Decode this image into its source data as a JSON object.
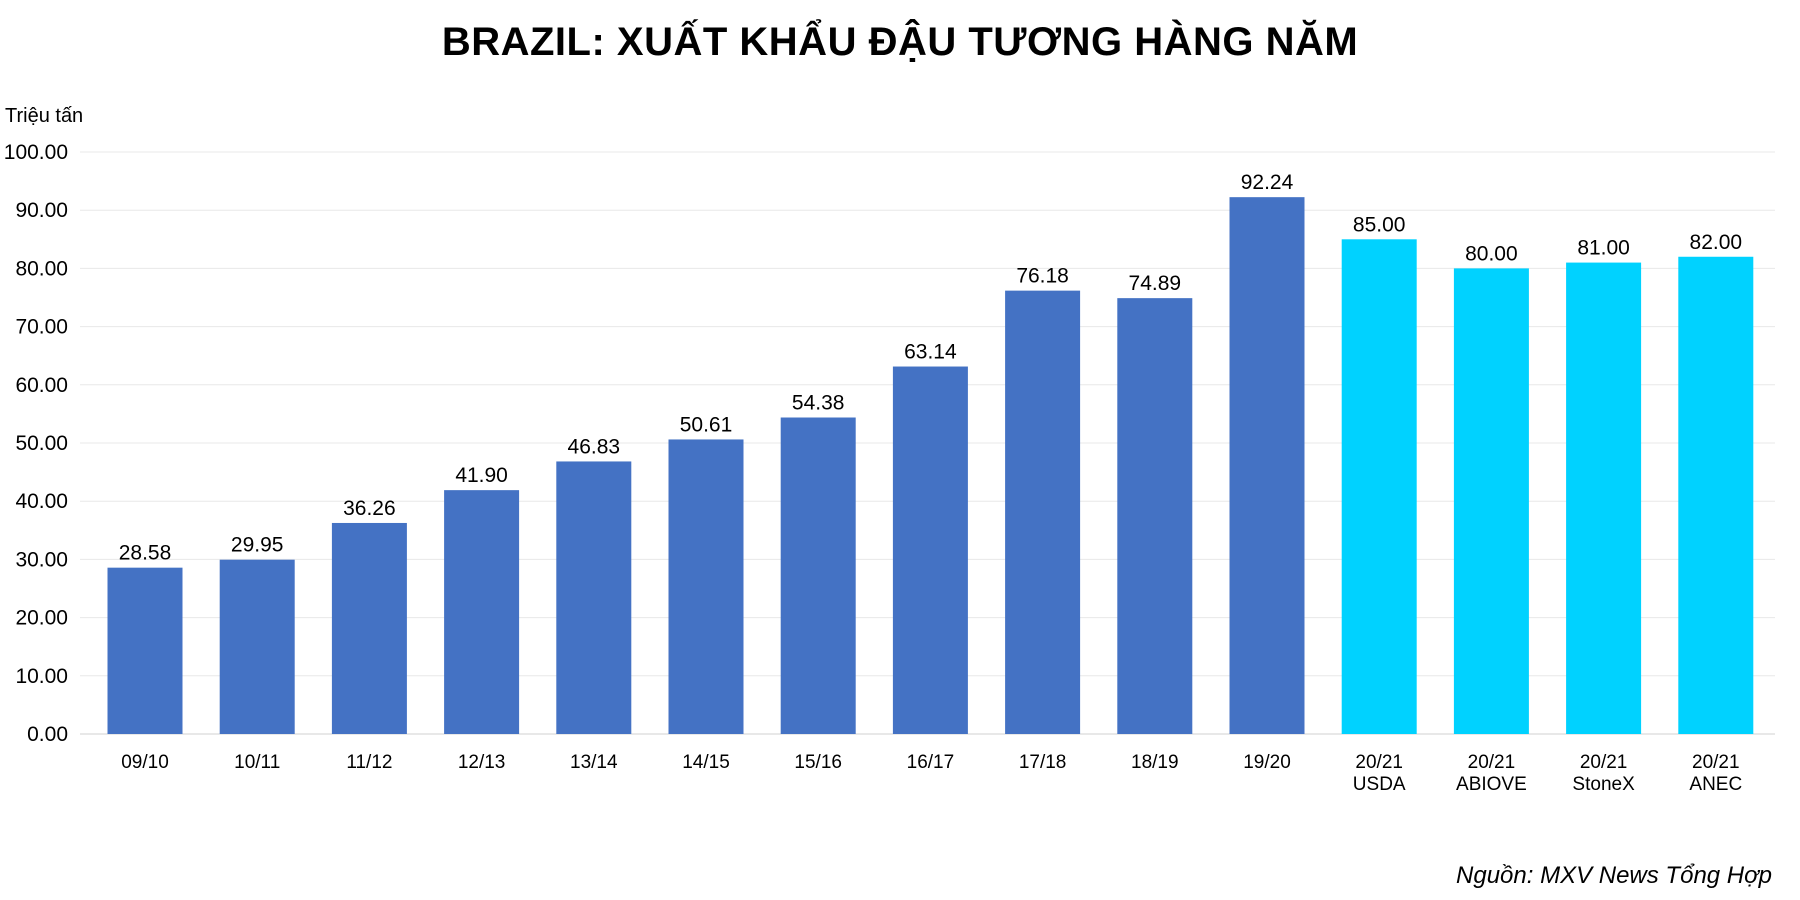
{
  "chart_data": {
    "type": "bar",
    "title": "BRAZIL: XUẤT KHẨU ĐẬU TƯƠNG HÀNG NĂM",
    "ylabel": "Triệu tấn",
    "xlabel": "",
    "ylim": [
      0,
      100
    ],
    "yticks": [
      "0.00",
      "10.00",
      "20.00",
      "30.00",
      "40.00",
      "50.00",
      "60.00",
      "70.00",
      "80.00",
      "90.00",
      "100.00"
    ],
    "grid": true,
    "categories": [
      [
        "09/10"
      ],
      [
        "10/11"
      ],
      [
        "11/12"
      ],
      [
        "12/13"
      ],
      [
        "13/14"
      ],
      [
        "14/15"
      ],
      [
        "15/16"
      ],
      [
        "16/17"
      ],
      [
        "17/18"
      ],
      [
        "18/19"
      ],
      [
        "19/20"
      ],
      [
        "20/21",
        "USDA"
      ],
      [
        "20/21",
        "ABIOVE"
      ],
      [
        "20/21",
        "StoneX"
      ],
      [
        "20/21",
        "ANEC"
      ]
    ],
    "values": [
      28.58,
      29.95,
      36.26,
      41.9,
      46.83,
      50.61,
      54.38,
      63.14,
      76.18,
      74.89,
      92.24,
      85.0,
      80.0,
      81.0,
      82.0
    ],
    "value_labels": [
      "28.58",
      "29.95",
      "36.26",
      "41.90",
      "46.83",
      "50.61",
      "54.38",
      "63.14",
      "76.18",
      "74.89",
      "92.24",
      "85.00",
      "80.00",
      "81.00",
      "82.00"
    ],
    "bar_colors": [
      "#4472C4",
      "#4472C4",
      "#4472C4",
      "#4472C4",
      "#4472C4",
      "#4472C4",
      "#4472C4",
      "#4472C4",
      "#4472C4",
      "#4472C4",
      "#4472C4",
      "#00D2FF",
      "#00D2FF",
      "#00D2FF",
      "#00D2FF"
    ],
    "gridline_color": "#E8E8E8"
  },
  "source_text": "Nguồn: MXV News Tổng Hợp"
}
